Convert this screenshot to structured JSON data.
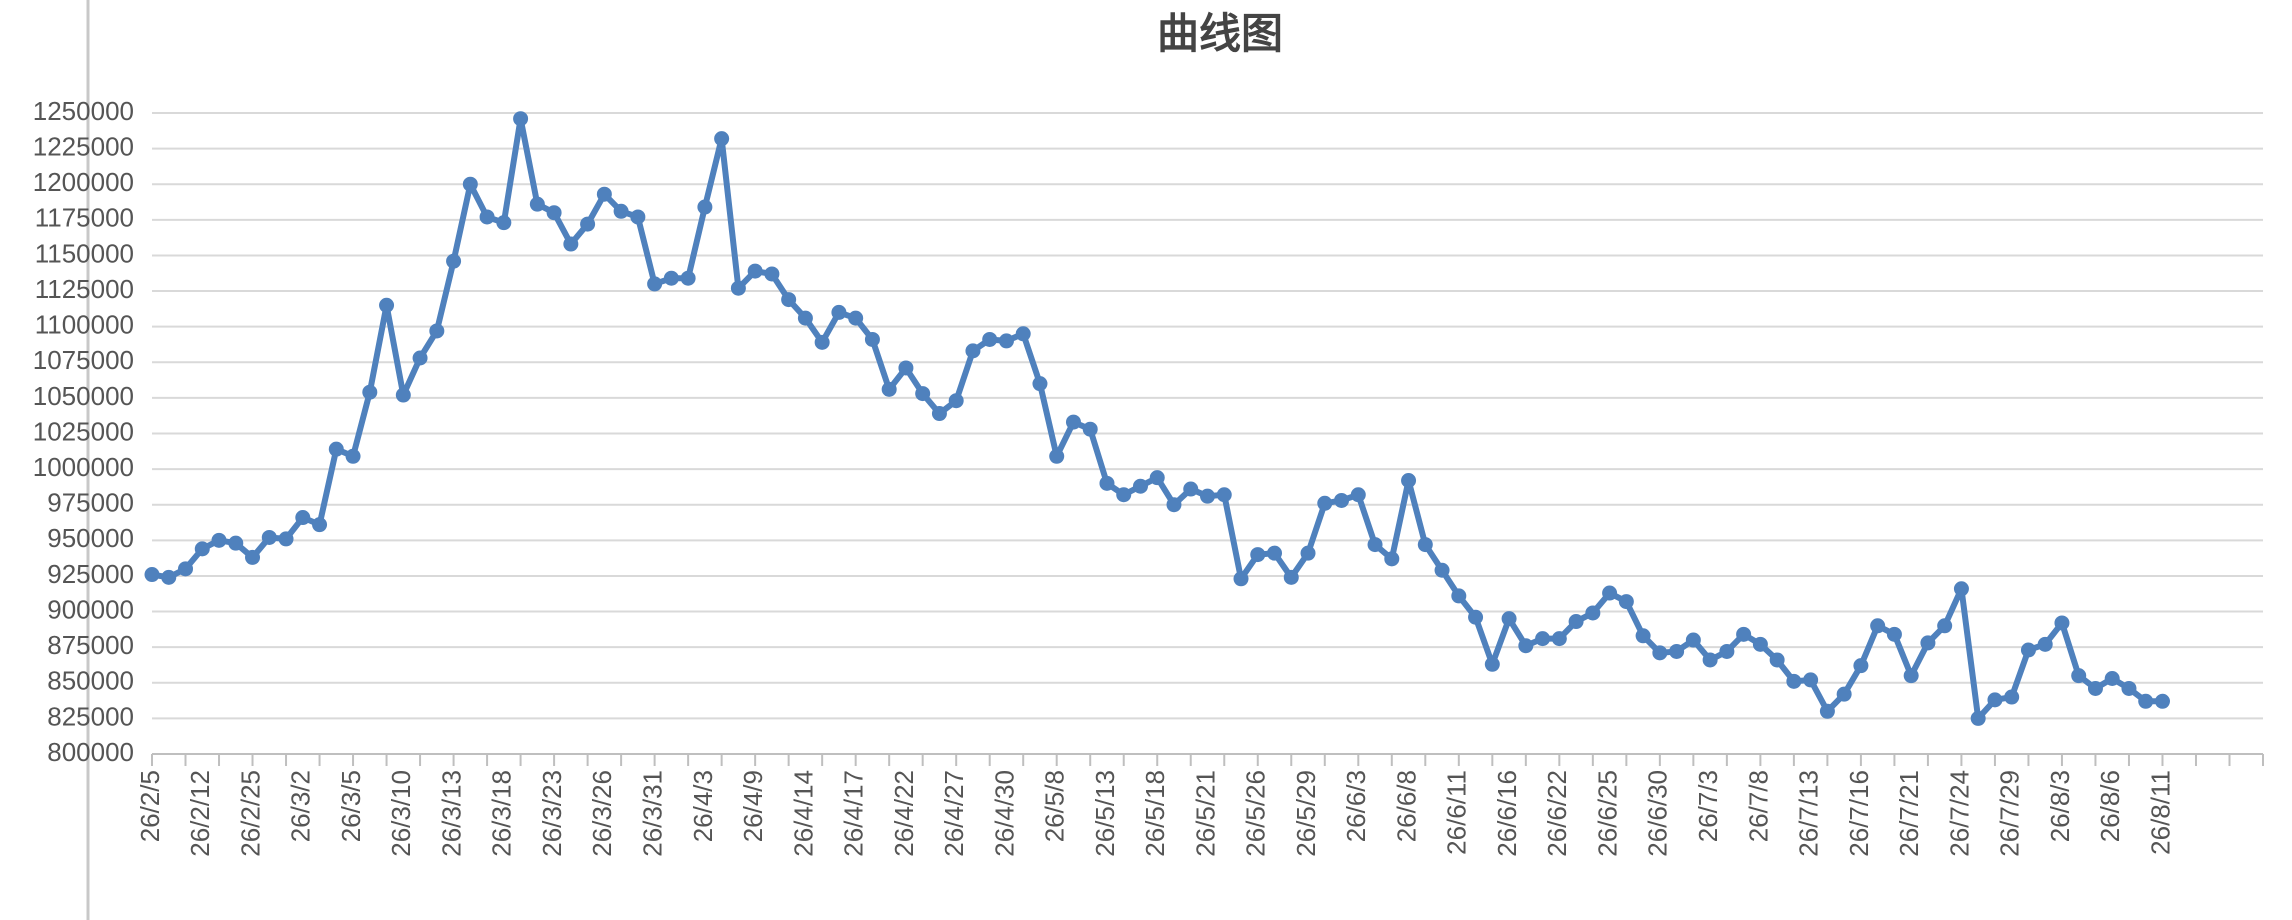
{
  "chart_data": {
    "type": "line",
    "title": "曲线图",
    "categories": [
      "26/2/5",
      null,
      null,
      "26/2/12",
      null,
      null,
      "26/2/25",
      null,
      null,
      "26/3/2",
      null,
      null,
      "26/3/5",
      null,
      null,
      "26/3/10",
      null,
      null,
      "26/3/13",
      null,
      null,
      "26/3/18",
      null,
      null,
      "26/3/23",
      null,
      null,
      "26/3/26",
      null,
      null,
      "26/3/31",
      null,
      null,
      "26/4/3",
      null,
      null,
      "26/4/9",
      null,
      null,
      "26/4/14",
      null,
      null,
      "26/4/17",
      null,
      null,
      "26/4/22",
      null,
      null,
      "26/4/27",
      null,
      null,
      "26/4/30",
      null,
      null,
      "26/5/8",
      null,
      null,
      "26/5/13",
      null,
      null,
      "26/5/18",
      null,
      null,
      "26/5/21",
      null,
      null,
      "26/5/26",
      null,
      null,
      "26/5/29",
      null,
      null,
      "26/6/3",
      null,
      null,
      "26/6/8",
      null,
      null,
      "26/6/11",
      null,
      null,
      "26/6/16",
      null,
      null,
      "26/6/22",
      null,
      null,
      "26/6/25",
      null,
      null,
      "26/6/30",
      null,
      null,
      "26/7/3",
      null,
      null,
      "26/7/8",
      null,
      null,
      "26/7/13",
      null,
      null,
      "26/7/16",
      null,
      null,
      "26/7/21",
      null,
      null,
      "26/7/24",
      null,
      null,
      "26/7/29",
      null,
      null,
      "26/8/3",
      null,
      null,
      "26/8/6",
      null,
      null,
      "26/8/11",
      null,
      null,
      null,
      null,
      null,
      null
    ],
    "values": [
      926000,
      924000,
      930000,
      944000,
      950000,
      948000,
      938000,
      952000,
      951000,
      966000,
      961000,
      1014000,
      1009000,
      1054000,
      1115000,
      1052000,
      1078000,
      1097000,
      1146000,
      1200000,
      1177000,
      1173000,
      1246000,
      1186000,
      1180000,
      1158000,
      1172000,
      1193000,
      1181000,
      1177000,
      1130000,
      1134000,
      1134000,
      1184000,
      1232000,
      1127000,
      1139000,
      1137000,
      1119000,
      1106000,
      1089000,
      1110000,
      1106000,
      1091000,
      1056000,
      1071000,
      1053000,
      1039000,
      1048000,
      1083000,
      1091000,
      1090000,
      1095000,
      1060000,
      1009000,
      1033000,
      1028000,
      990000,
      982000,
      988000,
      994000,
      975000,
      986000,
      981000,
      982000,
      923000,
      940000,
      941000,
      924000,
      941000,
      976000,
      978000,
      982000,
      947000,
      937000,
      992000,
      947000,
      929000,
      911000,
      896000,
      863000,
      895000,
      876000,
      881000,
      881000,
      893000,
      899000,
      913000,
      907000,
      883000,
      871000,
      872000,
      880000,
      866000,
      872000,
      884000,
      877000,
      866000,
      851000,
      852000,
      830000,
      842000,
      862000,
      890000,
      884000,
      855000,
      878000,
      890000,
      916000,
      825000,
      838000,
      840000,
      873000,
      877000,
      892000,
      855000,
      846000,
      853000,
      846000,
      837000,
      837000,
      null,
      null,
      null,
      null,
      null,
      null
    ],
    "color": "#4f81bd",
    "ylim": [
      800000,
      1250000
    ],
    "yticks": [
      800000,
      825000,
      850000,
      875000,
      900000,
      925000,
      950000,
      975000,
      1000000,
      1025000,
      1050000,
      1075000,
      1100000,
      1125000,
      1150000,
      1175000,
      1200000,
      1225000,
      1250000
    ],
    "grid": true
  }
}
